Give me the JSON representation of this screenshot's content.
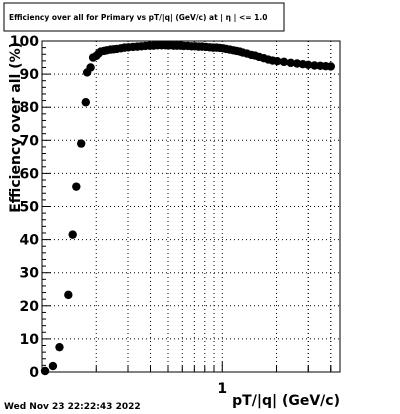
{
  "chart_data": {
    "type": "scatter",
    "title": "Efficiency over all for Primary vs pT/|q| (GeV/c) at | η | <= 1.0",
    "xlabel": "pT/|q| (GeV/c)",
    "ylabel": "Efficiency over all (%)",
    "x_scale": "log",
    "xlim": [
      0.1,
      4.5
    ],
    "ylim": [
      0,
      100
    ],
    "y_ticks": [
      "0",
      "10",
      "20",
      "30",
      "40",
      "50",
      "60",
      "70",
      "80",
      "90",
      "100"
    ],
    "x_tick_labels": [
      "1"
    ],
    "grid": true,
    "marker": "filled-circle",
    "color": "#000000",
    "x": [
      0.104,
      0.115,
      0.125,
      0.14,
      0.148,
      0.155,
      0.165,
      0.175,
      0.178,
      0.186,
      0.192,
      0.2,
      0.206,
      0.212,
      0.221,
      0.229,
      0.24,
      0.25,
      0.26,
      0.274,
      0.287,
      0.302,
      0.32,
      0.338,
      0.356,
      0.375,
      0.395,
      0.416,
      0.438,
      0.461,
      0.485,
      0.51,
      0.536,
      0.56,
      0.585,
      0.613,
      0.644,
      0.676,
      0.706,
      0.74,
      0.773,
      0.81,
      0.85,
      0.89,
      0.93,
      0.97,
      1.01,
      1.05,
      1.1,
      1.15,
      1.2,
      1.25,
      1.3,
      1.37,
      1.45,
      1.52,
      1.6,
      1.7,
      1.8,
      1.9,
      2.02,
      2.2,
      2.4,
      2.6,
      2.8,
      3.0,
      3.25,
      3.5,
      3.75,
      4.0
    ],
    "y": [
      0.3,
      1.8,
      7.5,
      23.3,
      41.5,
      56.0,
      69.0,
      81.5,
      90.5,
      92.0,
      95.0,
      95.5,
      96.2,
      96.8,
      97.0,
      97.2,
      97.4,
      97.5,
      97.6,
      97.8,
      98.0,
      98.1,
      98.2,
      98.3,
      98.4,
      98.5,
      98.6,
      98.6,
      98.7,
      98.7,
      98.7,
      98.7,
      98.6,
      98.6,
      98.6,
      98.5,
      98.5,
      98.4,
      98.4,
      98.3,
      98.3,
      98.2,
      98.1,
      98.0,
      98.0,
      97.9,
      97.8,
      97.6,
      97.4,
      97.2,
      97.0,
      96.8,
      96.5,
      96.2,
      95.8,
      95.6,
      95.2,
      94.8,
      94.4,
      94.1,
      93.9,
      93.7,
      93.4,
      93.2,
      93.0,
      92.8,
      92.6,
      92.5,
      92.4,
      92.3
    ]
  },
  "footer": {
    "timestamp": "Wed Nov 23 22:22:43 2022"
  }
}
